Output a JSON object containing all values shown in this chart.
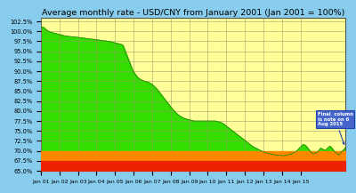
{
  "title": "Average monthly rate - USD/CNY from January 2001 (Jan 2001 = 100%)",
  "title_fontsize": 6.8,
  "background_color": "#FFFFCC",
  "outer_bg": "#88CCEE",
  "ylim": [
    65.0,
    103.5
  ],
  "yticks": [
    65.0,
    67.5,
    70.0,
    72.5,
    75.0,
    77.5,
    80.0,
    82.5,
    85.0,
    87.5,
    90.0,
    92.5,
    95.0,
    97.5,
    100.0,
    102.5
  ],
  "grid_color": "#999966",
  "x_labels": [
    "Jan 01",
    "Jan 02",
    "Jan 03",
    "Jan 04",
    "Jan 05",
    "Jan 06",
    "Jan 07",
    "Jan 08",
    "Jan 09",
    "Jan 10",
    "Jan 11",
    "Jan 12",
    "Jan 13",
    "Jan 14",
    "Jan 15"
  ],
  "annotation_text": "Final  column\nis note on 6\nAug 2015",
  "fill_green": "#33DD00",
  "fill_orange": "#FF8800",
  "fill_red": "#EE2200",
  "fill_yellow": "#FFFF99",
  "line_color": "#228800",
  "vals": [
    100.8,
    101.1,
    100.9,
    100.5,
    100.2,
    100.0,
    99.8,
    99.7,
    99.6,
    99.5,
    99.4,
    99.3,
    99.2,
    99.1,
    99.0,
    98.9,
    98.8,
    98.8,
    98.7,
    98.7,
    98.6,
    98.6,
    98.6,
    98.5,
    98.5,
    98.4,
    98.4,
    98.3,
    98.3,
    98.2,
    98.2,
    98.1,
    98.1,
    98.0,
    98.0,
    97.9,
    97.9,
    97.8,
    97.8,
    97.7,
    97.7,
    97.6,
    97.6,
    97.5,
    97.5,
    97.4,
    97.3,
    97.2,
    97.1,
    97.0,
    96.9,
    96.8,
    96.7,
    96.5,
    95.5,
    94.5,
    93.5,
    92.5,
    91.5,
    90.5,
    89.8,
    89.2,
    88.7,
    88.3,
    88.0,
    87.8,
    87.6,
    87.5,
    87.4,
    87.3,
    87.1,
    86.9,
    86.6,
    86.3,
    85.9,
    85.5,
    85.0,
    84.5,
    84.0,
    83.5,
    83.0,
    82.5,
    82.0,
    81.5,
    81.0,
    80.5,
    80.1,
    79.7,
    79.3,
    79.0,
    78.7,
    78.5,
    78.3,
    78.1,
    78.0,
    77.9,
    77.8,
    77.7,
    77.6,
    77.5,
    77.5,
    77.5,
    77.5,
    77.5,
    77.5,
    77.5,
    77.5,
    77.5,
    77.5,
    77.5,
    77.5,
    77.5,
    77.5,
    77.5,
    77.4,
    77.3,
    77.2,
    77.0,
    76.8,
    76.5,
    76.2,
    75.9,
    75.6,
    75.3,
    75.0,
    74.7,
    74.4,
    74.1,
    73.8,
    73.5,
    73.2,
    72.9,
    72.6,
    72.3,
    72.0,
    71.7,
    71.4,
    71.1,
    70.9,
    70.7,
    70.5,
    70.3,
    70.1,
    69.9,
    69.8,
    69.6,
    69.5,
    69.4,
    69.3,
    69.2,
    69.1,
    69.0,
    69.0,
    68.9,
    68.9,
    68.9,
    68.8,
    68.8,
    68.8,
    68.9,
    69.0,
    69.1,
    69.2,
    69.4,
    69.6,
    69.8,
    70.2,
    70.6,
    71.0,
    71.4,
    71.6,
    71.4,
    71.0,
    70.5,
    70.0,
    69.6,
    69.3,
    69.3,
    69.5,
    69.7,
    70.2,
    70.7,
    70.5,
    70.3,
    70.1,
    70.5,
    70.9,
    71.2,
    70.8,
    70.3,
    69.8,
    69.5,
    69.2,
    69.0,
    69.5,
    70.0,
    70.3,
    70.8
  ]
}
